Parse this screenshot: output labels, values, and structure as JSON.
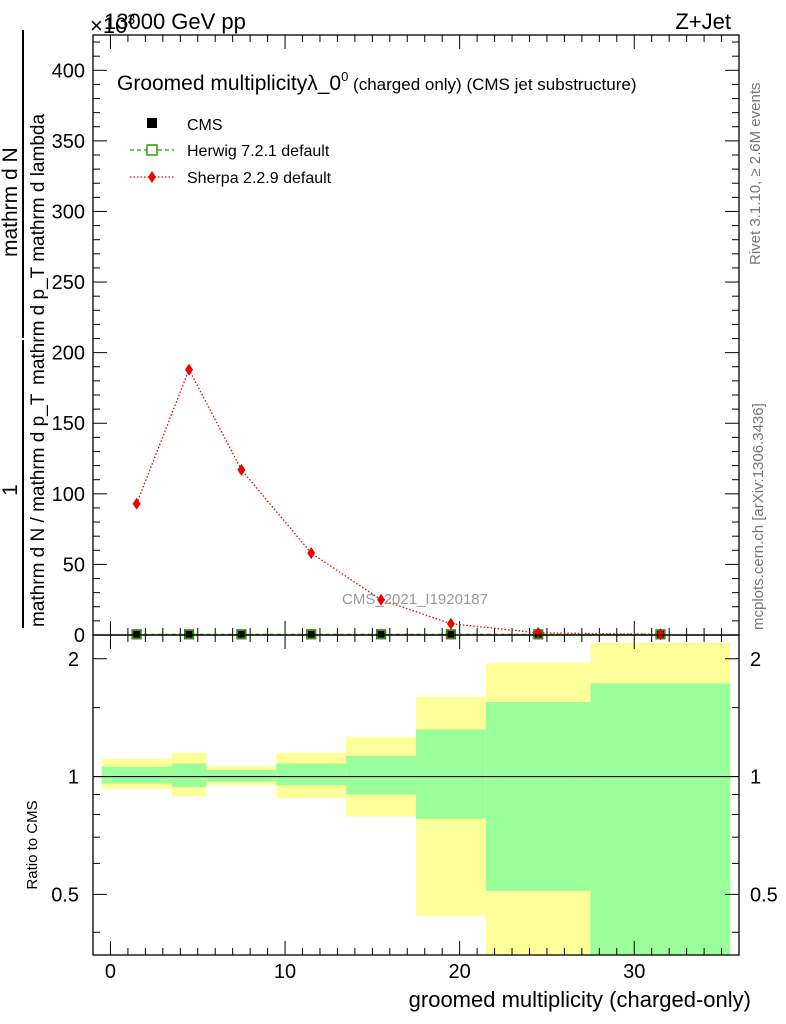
{
  "header": {
    "left": "13000 GeV pp",
    "right": "Z+Jet",
    "exponent_base": "×10",
    "exponent_power": "3"
  },
  "side_labels": {
    "rivet": "Rivet 3.1.10, ≥ 2.6M events",
    "mcplots": "mcplots.cern.ch [arXiv:1306.3436]"
  },
  "watermark": "CMS_2021_I1920187",
  "chart_data": [
    {
      "type": "line",
      "title_main": "Groomed multiplicityλ_0",
      "title_sup": "0",
      "title_rest": " (charged only) (CMS jet substructure)",
      "xlabel": "groomed multiplicity (charged-only)",
      "ylabel_numerator": "mathrm d N",
      "ylabel_denominator": "mathrm d p_T mathrm d lambda",
      "ylabel_prefix_num": "1",
      "ylabel_prefix_den": "mathrm d N / mathrm d p_T",
      "xlim": [
        -1,
        36
      ],
      "ylim": [
        0,
        425
      ],
      "y_multiplier": 1000,
      "y_ticks": [
        0,
        50,
        100,
        150,
        200,
        250,
        300,
        350,
        400
      ],
      "y_tick_labels": [
        "0",
        "50",
        "100",
        "150",
        "200",
        "250",
        "300",
        "350",
        "400"
      ],
      "x": [
        1.5,
        4.5,
        7.5,
        11.5,
        15.5,
        19.5,
        24.5,
        31.5
      ],
      "series": [
        {
          "name": "CMS",
          "style": "filled-square",
          "color": "#000000",
          "values": [
            0.5,
            0.5,
            0.5,
            0.5,
            0.5,
            0.5,
            0.5,
            0.5
          ]
        },
        {
          "name": "Herwig 7.2.1 default",
          "style": "open-square-dashed",
          "color": "#339900",
          "values": [
            0.5,
            0.5,
            0.5,
            0.5,
            0.5,
            0.5,
            0.5,
            0.5
          ]
        },
        {
          "name": "Sherpa 2.2.9 default",
          "style": "diamond-dotted",
          "color": "#ee0000",
          "values": [
            93,
            188,
            117,
            58,
            25,
            8,
            1.5,
            0.5
          ]
        }
      ],
      "legend_position": "top-left",
      "grid": false
    },
    {
      "type": "area",
      "ylabel": "Ratio to CMS",
      "ylim": [
        0.35,
        2.3
      ],
      "log_y": true,
      "y_ticks": [
        0.5,
        1,
        2
      ],
      "y_tick_labels": [
        "0.5",
        "1",
        "2"
      ],
      "x_ticks": [
        0,
        10,
        20,
        30
      ],
      "x_tick_labels": [
        "0",
        "10",
        "20",
        "30"
      ],
      "reference_line": 1,
      "band_colors": {
        "outer": "#ffff99",
        "inner": "#99ff99"
      },
      "bins": [
        {
          "x_low": -0.5,
          "x_high": 3.5,
          "inner": [
            0.96,
            1.06
          ],
          "outer": [
            0.93,
            1.11
          ]
        },
        {
          "x_low": 3.5,
          "x_high": 5.5,
          "inner": [
            0.94,
            1.08
          ],
          "outer": [
            0.89,
            1.15
          ]
        },
        {
          "x_low": 5.5,
          "x_high": 9.5,
          "inner": [
            0.97,
            1.04
          ],
          "outer": [
            0.95,
            1.06
          ]
        },
        {
          "x_low": 9.5,
          "x_high": 13.5,
          "inner": [
            0.95,
            1.08
          ],
          "outer": [
            0.88,
            1.15
          ]
        },
        {
          "x_low": 13.5,
          "x_high": 17.5,
          "inner": [
            0.9,
            1.13
          ],
          "outer": [
            0.79,
            1.26
          ]
        },
        {
          "x_low": 17.5,
          "x_high": 21.5,
          "inner": [
            0.78,
            1.32
          ],
          "outer": [
            0.44,
            1.6
          ]
        },
        {
          "x_low": 21.5,
          "x_high": 27.5,
          "inner": [
            0.51,
            1.55
          ],
          "outer": [
            0.35,
            1.95
          ]
        },
        {
          "x_low": 27.5,
          "x_high": 35.5,
          "inner": [
            0.35,
            1.73
          ],
          "outer": [
            0.35,
            2.2
          ]
        }
      ]
    }
  ]
}
